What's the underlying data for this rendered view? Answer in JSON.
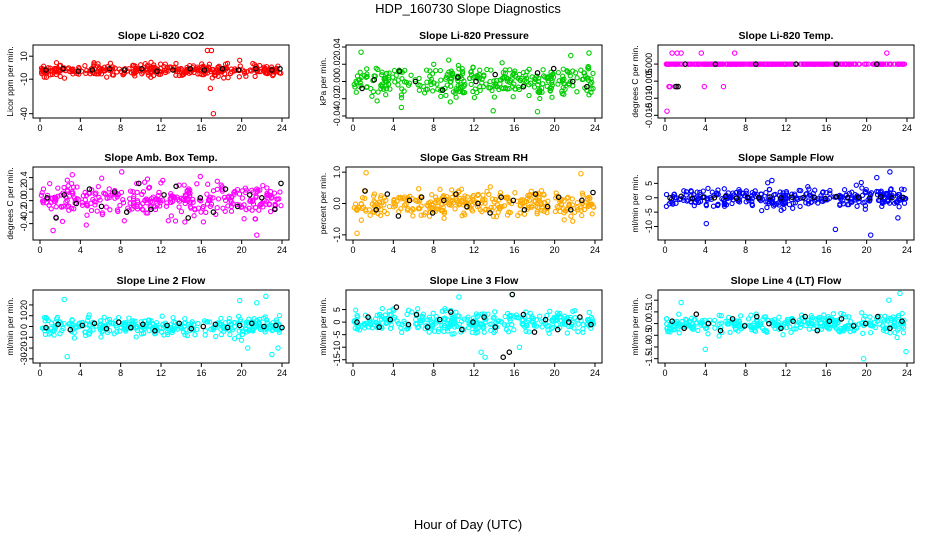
{
  "figure": {
    "title": "HDP_160730  Slope Diagnostics",
    "xlabel": "Hour of Day (UTC)"
  },
  "chart_data": [
    {
      "type": "scatter",
      "title": "Slope Li-820 CO2",
      "ylabel": "Licor ppm per min.",
      "color": "#ff0000",
      "xlim": [
        0,
        24
      ],
      "ylim": [
        -42,
        18
      ],
      "xticks": [
        0,
        4,
        8,
        12,
        16,
        20,
        24
      ],
      "yticks": [
        -40,
        -10,
        10
      ],
      "ytick_labels": [
        "-40",
        "-10",
        "10"
      ],
      "center": -2,
      "spread": 4,
      "outliers": [
        [
          16.6,
          15
        ],
        [
          17.0,
          15
        ],
        [
          17.2,
          -40
        ],
        [
          16.9,
          -18
        ],
        [
          18.9,
          -5
        ]
      ],
      "black": [
        [
          0.6,
          -2
        ],
        [
          2.3,
          -1
        ],
        [
          3.8,
          -3
        ],
        [
          5.2,
          -2
        ],
        [
          6.9,
          -1
        ],
        [
          8.4,
          -2
        ],
        [
          10.1,
          -1
        ],
        [
          11.6,
          -3
        ],
        [
          13.2,
          -2
        ],
        [
          14.9,
          -1
        ],
        [
          16.3,
          -2
        ],
        [
          18.1,
          -1
        ],
        [
          19.7,
          -2
        ],
        [
          21.4,
          -1
        ],
        [
          23.0,
          -2
        ],
        [
          23.8,
          -1
        ]
      ]
    },
    {
      "type": "scatter",
      "title": "Slope Li-820 Pressure",
      "ylabel": "kPa per min.",
      "color": "#00cc00",
      "xlim": [
        0,
        24
      ],
      "ylim": [
        -0.04,
        0.04
      ],
      "xticks": [
        0,
        4,
        8,
        12,
        16,
        20,
        24
      ],
      "yticks": [
        -0.04,
        -0.02,
        0.0,
        0.02,
        0.04
      ],
      "ytick_labels": [
        "-0.04",
        "-0.02",
        "0.00",
        "0.02",
        "0.04"
      ],
      "center": 0,
      "spread": 0.012,
      "outliers": [
        [
          0.8,
          0.034
        ],
        [
          4.8,
          -0.03
        ],
        [
          13.9,
          -0.034
        ],
        [
          18.3,
          -0.035
        ],
        [
          21.6,
          0.03
        ],
        [
          23.4,
          0.033
        ]
      ],
      "black": [
        [
          0.9,
          -0.008
        ],
        [
          2.1,
          0.002
        ],
        [
          4.6,
          0.012
        ],
        [
          6.2,
          0.0
        ],
        [
          8.9,
          -0.01
        ],
        [
          10.4,
          0.005
        ],
        [
          12.2,
          0.0
        ],
        [
          14.1,
          0.008
        ],
        [
          16.9,
          -0.006
        ],
        [
          18.3,
          0.01
        ],
        [
          19.9,
          0.015
        ],
        [
          21.8,
          0.0
        ],
        [
          23.2,
          -0.006
        ]
      ]
    },
    {
      "type": "scatter",
      "title": "Slope Li-820 Temp.",
      "ylabel": "degrees C per min.",
      "color": "#ff00ff",
      "xlim": [
        0,
        24
      ],
      "ylim": [
        -0.0152,
        0.005
      ],
      "xticks": [
        0,
        4,
        8,
        12,
        16,
        20,
        24
      ],
      "yticks": [
        -0.015,
        -0.01,
        -0.005,
        0.0
      ],
      "ytick_labels": [
        "-0.015",
        "-0.010",
        "-0.005",
        "0.000"
      ],
      "center": 0,
      "spread": 0.0,
      "outliers": [
        [
          0.2,
          -0.0138
        ],
        [
          0.4,
          -0.0066
        ],
        [
          0.7,
          0.0032
        ],
        [
          1.2,
          0.0032
        ],
        [
          1.6,
          0.0032
        ],
        [
          3.6,
          0.0032
        ],
        [
          6.9,
          0.0032
        ],
        [
          22.0,
          0.0032
        ],
        [
          0.5,
          -0.0066
        ],
        [
          1.0,
          -0.0066
        ],
        [
          3.9,
          -0.0066
        ],
        [
          5.8,
          -0.0066
        ]
      ],
      "black": [
        [
          1.1,
          -0.0066
        ],
        [
          1.3,
          -0.0066
        ],
        [
          2.0,
          0.0
        ],
        [
          5.0,
          0.0
        ],
        [
          9.0,
          0.0
        ],
        [
          13.0,
          0.0
        ],
        [
          17.0,
          0.0
        ],
        [
          21.0,
          0.0
        ]
      ]
    },
    {
      "type": "scatter",
      "title": "Slope Amb. Box Temp.",
      "ylabel": "degrees C per min.",
      "color": "#ff00ff",
      "xlim": [
        0,
        24
      ],
      "ylim": [
        -0.65,
        0.55
      ],
      "xticks": [
        0,
        4,
        8,
        12,
        16,
        20,
        24
      ],
      "yticks": [
        -0.4,
        -0.2,
        0.0,
        0.2,
        0.4
      ],
      "ytick_labels": [
        "-0.4",
        "-0.2",
        "0.0",
        "0.2",
        "0.4"
      ],
      "center": 0,
      "spread": 0.2,
      "outliers": [
        [
          1.3,
          -0.52
        ],
        [
          8.1,
          0.5
        ],
        [
          21.5,
          -0.6
        ],
        [
          3.2,
          0.45
        ],
        [
          15.9,
          0.42
        ]
      ],
      "black": [
        [
          0.7,
          0.05
        ],
        [
          1.6,
          -0.3
        ],
        [
          2.4,
          0.1
        ],
        [
          3.6,
          -0.05
        ],
        [
          4.9,
          0.2
        ],
        [
          6.1,
          -0.1
        ],
        [
          7.4,
          0.15
        ],
        [
          8.6,
          -0.2
        ],
        [
          9.8,
          0.3
        ],
        [
          11.0,
          -0.15
        ],
        [
          12.3,
          0.1
        ],
        [
          13.5,
          0.25
        ],
        [
          14.7,
          -0.3
        ],
        [
          15.9,
          0.05
        ],
        [
          17.2,
          -0.2
        ],
        [
          18.4,
          0.2
        ],
        [
          19.6,
          -0.1
        ],
        [
          20.8,
          0.1
        ],
        [
          22.0,
          0.05
        ],
        [
          23.3,
          -0.15
        ],
        [
          23.9,
          0.3
        ]
      ]
    },
    {
      "type": "scatter",
      "title": "Slope Gas Stream RH",
      "ylabel": "percent per min.",
      "color": "#ffaa00",
      "xlim": [
        0,
        24
      ],
      "ylim": [
        -1.1,
        1.1
      ],
      "xticks": [
        0,
        4,
        8,
        12,
        16,
        20,
        24
      ],
      "yticks": [
        -1.0,
        0.0,
        1.0
      ],
      "ytick_labels": [
        "-1.0",
        "0.0",
        "1.0"
      ],
      "center": 0,
      "spread": 0.3,
      "outliers": [
        [
          0.4,
          -0.95
        ],
        [
          1.3,
          0.98
        ],
        [
          22.6,
          0.95
        ]
      ],
      "black": [
        [
          1.2,
          0.4
        ],
        [
          2.3,
          -0.2
        ],
        [
          3.4,
          0.3
        ],
        [
          4.5,
          -0.4
        ],
        [
          5.6,
          0.1
        ],
        [
          6.8,
          0.2
        ],
        [
          7.9,
          -0.3
        ],
        [
          9.0,
          0.1
        ],
        [
          10.2,
          0.3
        ],
        [
          11.3,
          -0.1
        ],
        [
          12.4,
          0.0
        ],
        [
          13.6,
          -0.3
        ],
        [
          14.7,
          0.2
        ],
        [
          15.9,
          0.1
        ],
        [
          17.0,
          -0.2
        ],
        [
          18.1,
          0.3
        ],
        [
          19.3,
          -0.1
        ],
        [
          20.4,
          0.2
        ],
        [
          21.6,
          -0.2
        ],
        [
          22.7,
          0.1
        ],
        [
          23.8,
          0.35
        ]
      ]
    },
    {
      "type": "scatter",
      "title": "Slope Sample Flow",
      "ylabel": "ml/min per min.",
      "color": "#0000ff",
      "xlim": [
        0,
        24
      ],
      "ylim": [
        -14,
        10
      ],
      "xticks": [
        0,
        4,
        8,
        12,
        16,
        20,
        24
      ],
      "yticks": [
        -10,
        -5,
        0,
        5
      ],
      "ytick_labels": [
        "-10",
        "-5",
        "0",
        "5"
      ],
      "center": 0,
      "spread": 2.5,
      "outliers": [
        [
          22.3,
          9
        ],
        [
          21.0,
          7
        ],
        [
          20.4,
          -13
        ],
        [
          16.9,
          -11
        ],
        [
          4.1,
          -9
        ],
        [
          10.6,
          6
        ],
        [
          23.1,
          -7
        ]
      ],
      "black": [
        [
          0.5,
          0
        ],
        [
          1.6,
          0.5
        ],
        [
          2.7,
          -0.3
        ],
        [
          3.8,
          0.2
        ],
        [
          4.9,
          0
        ],
        [
          6.0,
          0.4
        ],
        [
          7.1,
          -0.2
        ],
        [
          8.2,
          0.1
        ],
        [
          9.3,
          0
        ],
        [
          10.4,
          0.3
        ],
        [
          11.5,
          -0.1
        ],
        [
          12.6,
          0.2
        ],
        [
          13.7,
          0
        ],
        [
          14.8,
          0.1
        ],
        [
          15.9,
          -0.3
        ],
        [
          17.0,
          0.4
        ],
        [
          18.1,
          0
        ],
        [
          19.2,
          0.2
        ],
        [
          20.3,
          -0.1
        ],
        [
          21.4,
          0.3
        ],
        [
          22.5,
          0
        ],
        [
          23.6,
          0.1
        ]
      ]
    },
    {
      "type": "scatter",
      "title": "Slope Line 2 Flow",
      "ylabel": "ml/min per min.",
      "color": "#00ffff",
      "xlim": [
        0,
        24
      ],
      "ylim": [
        -32,
        32
      ],
      "xticks": [
        0,
        4,
        8,
        12,
        16,
        20,
        24
      ],
      "yticks": [
        -30,
        -20,
        -10,
        0,
        10,
        20
      ],
      "ytick_labels": [
        "-30",
        "-20",
        "-10",
        "0",
        "10",
        "20"
      ],
      "center": 0,
      "spread": 6,
      "outliers": [
        [
          2.4,
          25
        ],
        [
          2.7,
          -28
        ],
        [
          22.4,
          28
        ],
        [
          23.0,
          -26
        ],
        [
          19.8,
          24
        ],
        [
          20.6,
          -20
        ],
        [
          21.5,
          22
        ],
        [
          23.6,
          -20
        ]
      ],
      "black": [
        [
          0.6,
          -1
        ],
        [
          1.8,
          2
        ],
        [
          3.0,
          -3
        ],
        [
          4.2,
          1
        ],
        [
          5.4,
          3
        ],
        [
          6.6,
          -2
        ],
        [
          7.8,
          4
        ],
        [
          9.0,
          -1
        ],
        [
          10.2,
          2
        ],
        [
          11.4,
          -4
        ],
        [
          12.6,
          1
        ],
        [
          13.8,
          3
        ],
        [
          15.0,
          -2
        ],
        [
          16.2,
          0
        ],
        [
          17.4,
          2
        ],
        [
          18.6,
          -1
        ],
        [
          19.8,
          1
        ],
        [
          21.0,
          3
        ],
        [
          22.2,
          0
        ],
        [
          23.4,
          1
        ],
        [
          24.0,
          -1
        ]
      ]
    },
    {
      "type": "scatter",
      "title": "Slope Line 3 Flow",
      "ylabel": "ml/min per min.",
      "color": "#00ffff",
      "xlim": [
        0,
        24
      ],
      "ylim": [
        -15.5,
        12
      ],
      "xticks": [
        0,
        4,
        8,
        12,
        16,
        20,
        24
      ],
      "yticks": [
        -15,
        -10,
        -5,
        0,
        5
      ],
      "ytick_labels": [
        "-15",
        "-10",
        "-5",
        "0",
        "5"
      ],
      "center": 0,
      "spread": 3,
      "outliers": [
        [
          10.5,
          10
        ],
        [
          13.1,
          -14
        ],
        [
          15.8,
          11
        ],
        [
          12.7,
          -12
        ],
        [
          16.5,
          -10
        ]
      ],
      "black": [
        [
          0.4,
          0
        ],
        [
          1.5,
          2
        ],
        [
          2.6,
          -2
        ],
        [
          3.7,
          1
        ],
        [
          4.3,
          6
        ],
        [
          5.5,
          -1
        ],
        [
          6.3,
          3
        ],
        [
          7.4,
          -2
        ],
        [
          8.6,
          1
        ],
        [
          9.7,
          4
        ],
        [
          10.8,
          -3
        ],
        [
          11.9,
          0
        ],
        [
          13.0,
          2
        ],
        [
          14.1,
          -2
        ],
        [
          14.9,
          -14
        ],
        [
          15.5,
          -12
        ],
        [
          15.8,
          11
        ],
        [
          16.9,
          3
        ],
        [
          18.0,
          -4
        ],
        [
          19.1,
          1
        ],
        [
          20.3,
          -3
        ],
        [
          21.4,
          0
        ],
        [
          22.5,
          2
        ],
        [
          23.6,
          -1
        ]
      ]
    },
    {
      "type": "scatter",
      "title": "Slope Line 4 (LT) Flow",
      "ylabel": "ml/min per min.",
      "color": "#00ffff",
      "xlim": [
        0,
        24
      ],
      "ylim": [
        -1.6,
        1.35
      ],
      "xticks": [
        0,
        4,
        8,
        12,
        16,
        20,
        24
      ],
      "yticks": [
        -1.5,
        -1.0,
        -0.5,
        0.0,
        0.5,
        1.0
      ],
      "ytick_labels": [
        "-1.5",
        "-1.0",
        "-0.5",
        "0.0",
        "0.5",
        "1.0"
      ],
      "center": 0,
      "spread": 0.28,
      "outliers": [
        [
          23.3,
          1.3
        ],
        [
          23.9,
          -1.2
        ],
        [
          19.7,
          -1.5
        ],
        [
          1.6,
          0.9
        ],
        [
          22.2,
          1.0
        ],
        [
          4.0,
          -1.1
        ]
      ],
      "black": [
        [
          0.7,
          0.1
        ],
        [
          1.9,
          -0.2
        ],
        [
          3.1,
          0.4
        ],
        [
          4.3,
          0
        ],
        [
          5.5,
          -0.3
        ],
        [
          6.7,
          0.2
        ],
        [
          7.9,
          -0.1
        ],
        [
          9.1,
          0.3
        ],
        [
          10.3,
          0
        ],
        [
          11.5,
          -0.2
        ],
        [
          12.7,
          0.1
        ],
        [
          13.9,
          0.3
        ],
        [
          15.1,
          -0.3
        ],
        [
          16.3,
          0.1
        ],
        [
          17.5,
          0.2
        ],
        [
          18.7,
          -0.1
        ],
        [
          19.9,
          0
        ],
        [
          21.1,
          0.3
        ],
        [
          22.3,
          -0.2
        ],
        [
          23.5,
          0.1
        ]
      ]
    }
  ]
}
